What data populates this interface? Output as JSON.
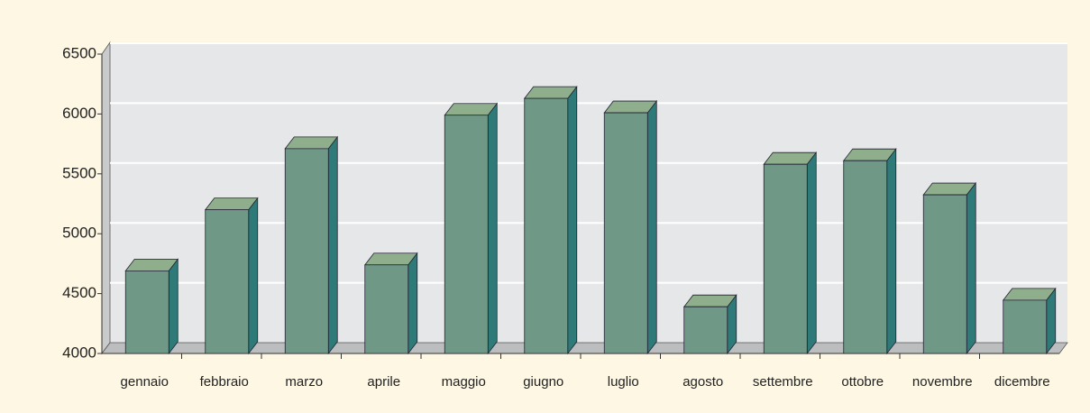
{
  "chart_data": {
    "type": "bar3d",
    "categories": [
      "gennaio",
      "febbraio",
      "marzo",
      "aprile",
      "maggio",
      "giugno",
      "luglio",
      "agosto",
      "settembre",
      "ottobre",
      "novembre",
      "dicembre"
    ],
    "values": [
      4690,
      5200,
      5710,
      4740,
      5990,
      6130,
      6010,
      4390,
      5580,
      5610,
      5325,
      4445
    ],
    "color": "#6f9886",
    "ylim": [
      4000,
      6500
    ],
    "yticks": [
      4000,
      4500,
      5000,
      5500,
      6000,
      6500
    ],
    "grid": true
  }
}
